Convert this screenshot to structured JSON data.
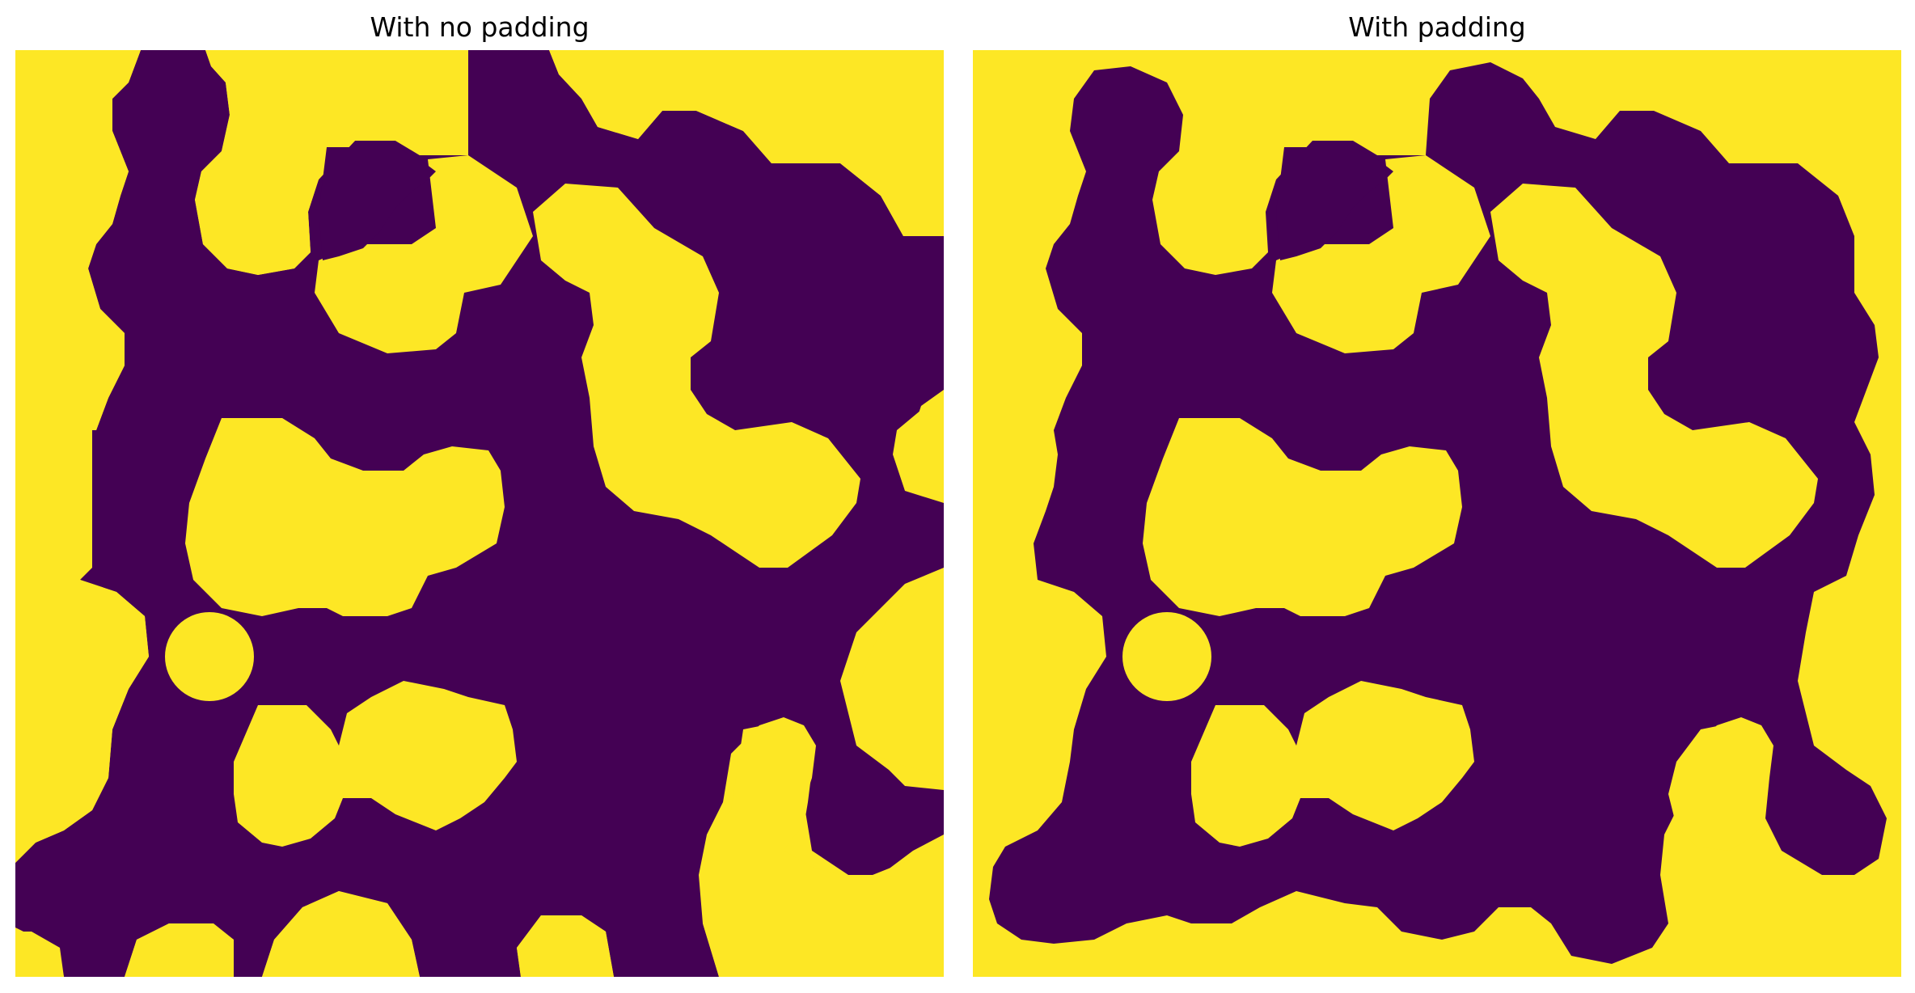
{
  "colors": {
    "foreground": "#440154",
    "background": "#fde725"
  },
  "panels": [
    {
      "title": "With no padding"
    },
    {
      "title": "With padding"
    }
  ]
}
